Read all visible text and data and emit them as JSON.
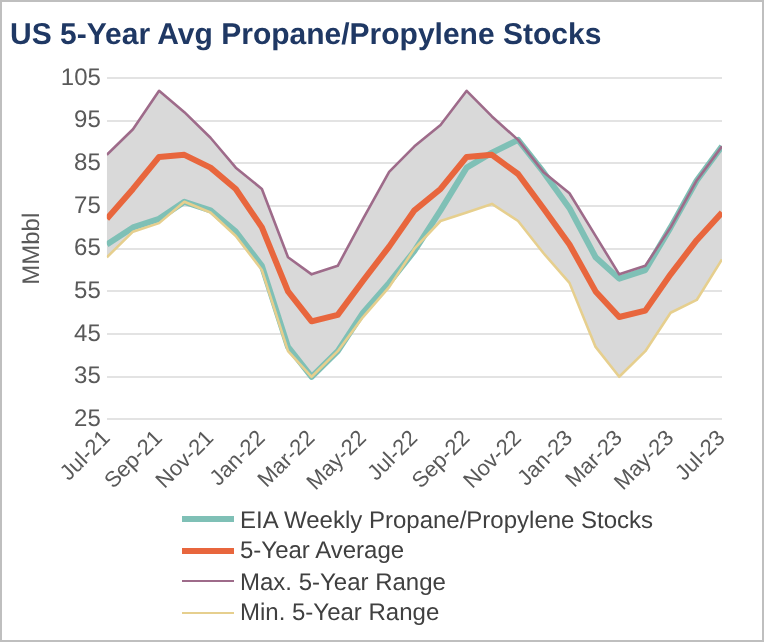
{
  "chart_data": {
    "type": "line",
    "title": "US 5-Year Avg Propane/Propylene Stocks",
    "ylabel": "MMbbl",
    "x": [
      "2021-07-01",
      "2021-08-01",
      "2021-09-01",
      "2021-10-01",
      "2021-11-01",
      "2021-12-01",
      "2022-01-01",
      "2022-02-01",
      "2022-03-01",
      "2022-04-01",
      "2022-05-01",
      "2022-06-01",
      "2022-07-01",
      "2022-08-01",
      "2022-09-01",
      "2022-10-01",
      "2022-11-01",
      "2022-12-01",
      "2023-01-01",
      "2023-02-01",
      "2023-03-01",
      "2023-04-01",
      "2023-05-01",
      "2023-06-01",
      "2023-07-01"
    ],
    "series": [
      {
        "name": "EIA Weekly Propane/Propylene Stocks",
        "color": "#7fc0b6",
        "values": [
          66,
          70,
          72,
          76,
          74,
          69,
          61,
          42,
          35,
          41,
          50,
          57,
          64.5,
          74,
          84,
          87.5,
          90.5,
          83,
          74.5,
          63,
          58,
          60,
          70,
          81,
          89
        ]
      },
      {
        "name": "5-Year Average",
        "color": "#e8663d",
        "values": [
          72,
          79,
          86.5,
          87,
          84,
          79,
          70,
          55,
          48,
          49.5,
          57.5,
          65.5,
          74,
          79,
          86.5,
          87,
          82.5,
          74.5,
          66,
          55,
          49,
          50.5,
          59,
          67,
          73.5
        ],
        "lower": [
          63,
          69,
          71,
          76,
          73.5,
          68,
          60,
          41,
          35,
          41,
          49,
          56,
          65,
          71.5,
          73.5,
          75.5,
          71.5,
          64,
          57,
          42,
          35,
          41,
          50,
          53,
          62.5
        ],
        "upper": [
          87,
          93,
          102,
          97,
          91,
          84,
          79,
          63,
          59,
          61,
          72,
          83,
          89,
          94,
          102,
          96,
          90.5,
          83,
          78,
          68,
          59,
          61,
          70,
          81,
          89
        ]
      },
      {
        "name": "Max. 5-Year Range",
        "color": "#9e6b8a",
        "values": [
          87,
          93,
          102,
          97,
          91,
          84,
          79,
          63,
          59,
          61,
          72,
          83,
          89,
          94,
          102,
          96,
          90.5,
          83,
          78,
          68,
          59,
          61,
          70,
          81,
          89
        ]
      },
      {
        "name": "Min. 5-Year Range",
        "color": "#e6cf8e",
        "values": [
          63,
          69,
          71,
          76,
          73.5,
          68,
          60,
          41,
          35,
          41,
          49,
          56,
          65,
          71.5,
          73.5,
          75.5,
          71.5,
          64,
          57,
          42,
          35,
          41,
          50,
          53,
          62.5
        ]
      }
    ],
    "xlim": [
      "2021-07-01",
      "2023-07-01"
    ],
    "xticks": [
      {
        "value": "2021-07-01",
        "label": "Jul-21"
      },
      {
        "value": "2021-09-01",
        "label": "Sep-21"
      },
      {
        "value": "2021-11-01",
        "label": "Nov-21"
      },
      {
        "value": "2022-01-01",
        "label": "Jan-22"
      },
      {
        "value": "2022-03-01",
        "label": "Mar-22"
      },
      {
        "value": "2022-05-01",
        "label": "May-22"
      },
      {
        "value": "2022-07-01",
        "label": "Jul-22"
      },
      {
        "value": "2022-09-01",
        "label": "Sep-22"
      },
      {
        "value": "2022-11-01",
        "label": "Nov-22"
      },
      {
        "value": "2023-01-01",
        "label": "Jan-23"
      },
      {
        "value": "2023-03-01",
        "label": "Mar-23"
      },
      {
        "value": "2023-05-01",
        "label": "May-23"
      },
      {
        "value": "2023-07-01",
        "label": "Jul-23"
      }
    ],
    "ylim": [
      25,
      105
    ],
    "yticks": [
      25,
      35,
      45,
      55,
      65,
      75,
      85,
      95,
      105
    ],
    "grid": "y",
    "legend": "bottom",
    "marker": "none",
    "line_style": "solid"
  }
}
